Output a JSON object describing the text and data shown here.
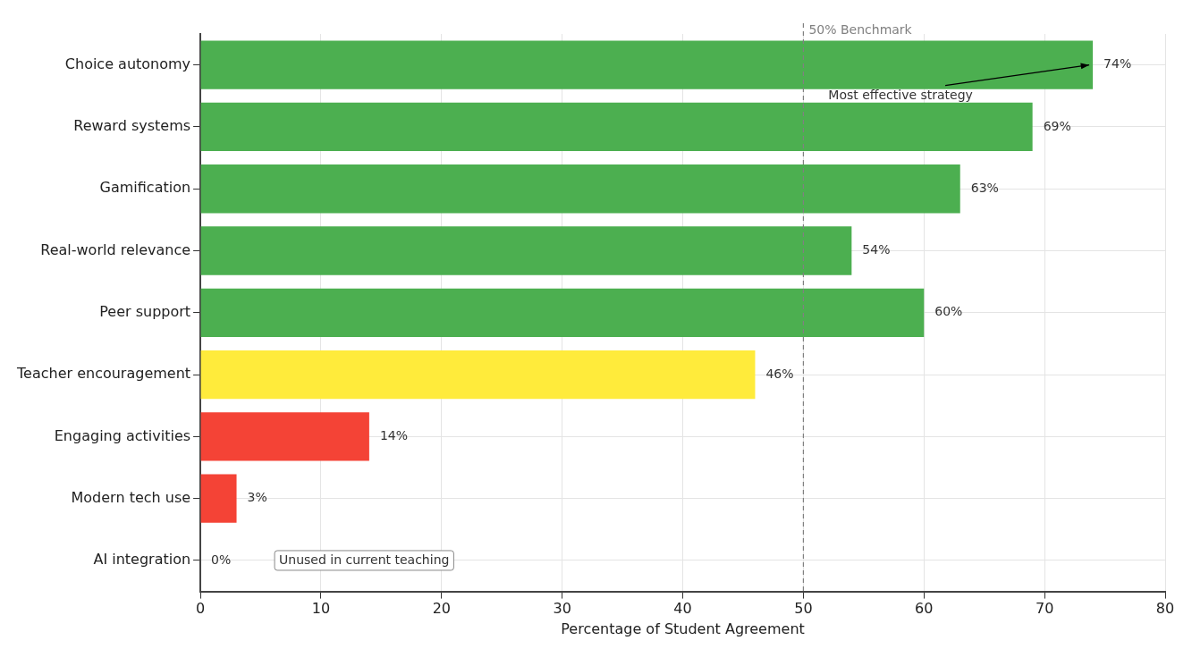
{
  "chart_data": {
    "type": "bar",
    "orientation": "horizontal",
    "xlabel": "Percentage of Student Agreement",
    "categories": [
      "Choice autonomy",
      "Reward systems",
      "Gamification",
      "Real-world relevance",
      "Peer support",
      "Teacher encouragement",
      "Engaging activities",
      "Modern tech use",
      "AI integration"
    ],
    "values": [
      74,
      69,
      63,
      54,
      60,
      46,
      14,
      3,
      0
    ],
    "colors": [
      "#4caf50",
      "#4caf50",
      "#4caf50",
      "#4caf50",
      "#4caf50",
      "#ffeb3b",
      "#f44336",
      "#f44336",
      "#f44336"
    ],
    "value_labels": [
      "74%",
      "69%",
      "63%",
      "54%",
      "60%",
      "46%",
      "14%",
      "3%",
      "0%"
    ],
    "xlim": [
      0,
      80
    ],
    "xticks": [
      0,
      10,
      20,
      30,
      40,
      50,
      60,
      70,
      80
    ],
    "grid": true,
    "legend": false,
    "ref_lines": [
      {
        "axis": "x",
        "value": 50,
        "label": "50% Benchmark",
        "color": "#808080",
        "line_style": "dashed"
      }
    ],
    "annotations": [
      {
        "text": "Most effective strategy",
        "x": 74,
        "y": "Choice autonomy"
      },
      "Unused in current teaching"
    ]
  }
}
